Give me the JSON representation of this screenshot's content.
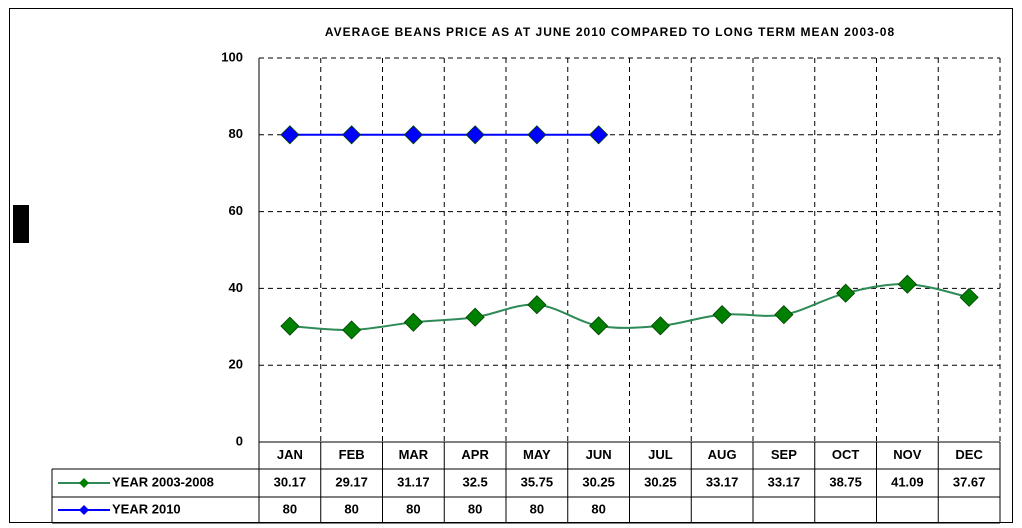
{
  "chart_data": {
    "type": "line",
    "title": "AVERAGE BEANS PRICE AS AT  JUNE 2010 COMPARED TO LONG TERM MEAN 2003-08",
    "categories": [
      "JAN",
      "FEB",
      "MAR",
      "APR",
      "MAY",
      "JUN",
      "JUL",
      "AUG",
      "SEP",
      "OCT",
      "NOV",
      "DEC"
    ],
    "series": [
      {
        "name": "YEAR 2003-2008",
        "color": "#008000",
        "line_color": "#2e8b57",
        "values": [
          30.17,
          29.17,
          31.17,
          32.5,
          35.75,
          30.25,
          30.25,
          33.17,
          33.17,
          38.75,
          41.09,
          37.67
        ]
      },
      {
        "name": "YEAR 2010",
        "color": "#0000ff",
        "line_color": "#0000ff",
        "values": [
          80,
          80,
          80,
          80,
          80,
          80,
          null,
          null,
          null,
          null,
          null,
          null
        ]
      }
    ],
    "ylim": [
      0,
      100
    ],
    "yticks": [
      0,
      20,
      40,
      60,
      80,
      100
    ],
    "grid": true
  }
}
